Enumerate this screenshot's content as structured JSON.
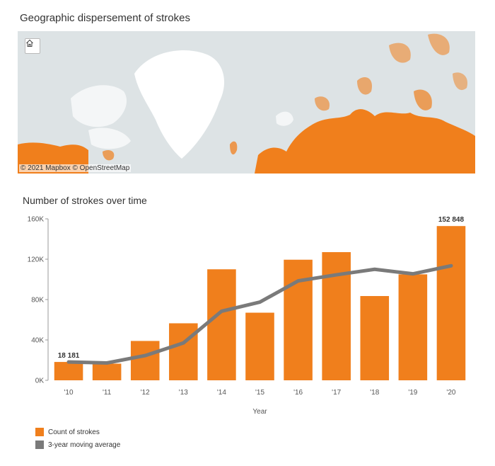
{
  "map": {
    "title": "Geographic dispersement of strokes",
    "attribution": "© 2021 Mapbox © OpenStreetMap",
    "home_icon": "home-icon"
  },
  "colors": {
    "bar": "#f07f1c",
    "line": "#7a7a7a",
    "map_water": "#dde3e5",
    "map_land": "#ffffff"
  },
  "chart_data": {
    "type": "bar",
    "title": "Number of strokes over time",
    "xlabel": "Year",
    "ylabel": "",
    "categories": [
      "'10",
      "'11",
      "'12",
      "'13",
      "'14",
      "'15",
      "'16",
      "'17",
      "'18",
      "'19",
      "'20"
    ],
    "series": [
      {
        "name": "Count of strokes",
        "type": "bar",
        "values": [
          18181,
          16500,
          39000,
          56500,
          110000,
          67000,
          119500,
          127000,
          83500,
          105000,
          152848
        ]
      },
      {
        "name": "3-year moving average",
        "type": "line",
        "values": [
          18181,
          17200,
          24500,
          37000,
          68500,
          77500,
          98500,
          104500,
          110000,
          105500,
          113500
        ]
      }
    ],
    "ylim": [
      0,
      160000
    ],
    "yticks": [
      "0K",
      "40K",
      "80K",
      "120K",
      "160K"
    ],
    "ytick_values": [
      0,
      40000,
      80000,
      120000,
      160000
    ],
    "data_labels": [
      {
        "index": 0,
        "text": "18 181"
      },
      {
        "index": 10,
        "text": "152 848"
      }
    ],
    "grid": false,
    "legend_position": "bottom-left"
  }
}
